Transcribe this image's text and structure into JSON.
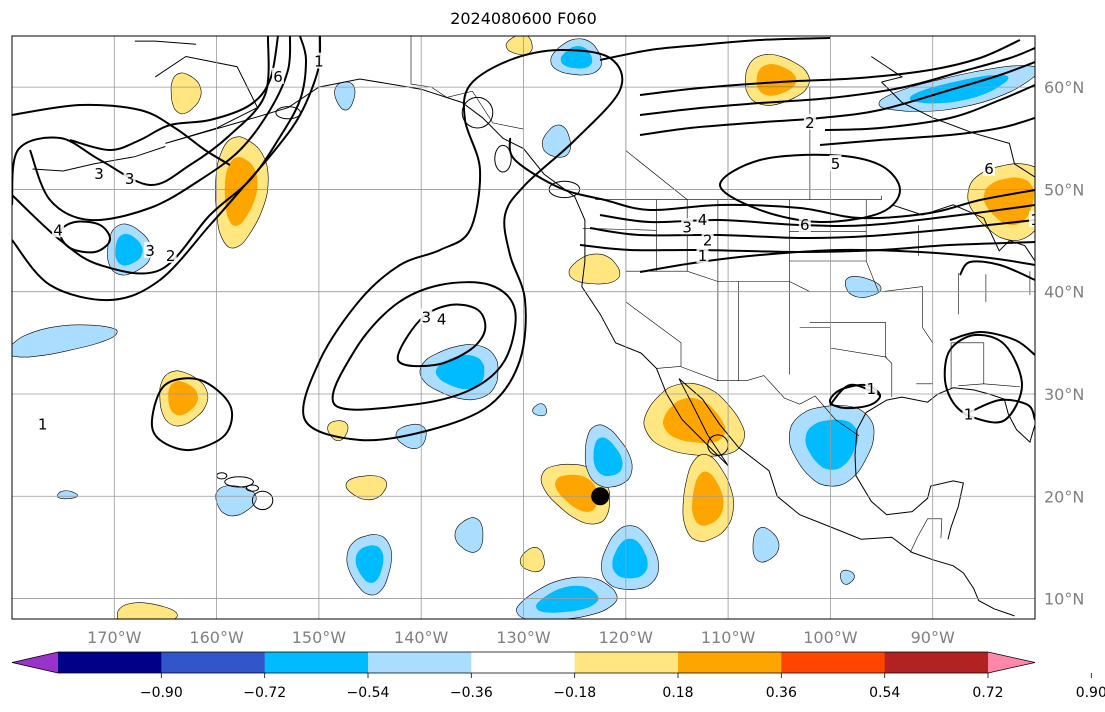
{
  "title": "2024080600 F060",
  "map": {
    "lon_range": [
      -180,
      -80
    ],
    "lat_range": [
      8,
      65
    ],
    "lon_ticks": [
      {
        "value": -170,
        "label": "170°W"
      },
      {
        "value": -160,
        "label": "160°W"
      },
      {
        "value": -150,
        "label": "150°W"
      },
      {
        "value": -140,
        "label": "140°W"
      },
      {
        "value": -130,
        "label": "130°W"
      },
      {
        "value": -120,
        "label": "120°W"
      },
      {
        "value": -110,
        "label": "110°W"
      },
      {
        "value": -100,
        "label": "100°W"
      },
      {
        "value": -90,
        "label": "90°W"
      }
    ],
    "lat_ticks": [
      {
        "value": 60,
        "label": "60°N"
      },
      {
        "value": 50,
        "label": "50°N"
      },
      {
        "value": 40,
        "label": "40°N"
      },
      {
        "value": 30,
        "label": "30°N"
      },
      {
        "value": 20,
        "label": "20°N"
      },
      {
        "value": 10,
        "label": "10°N"
      }
    ],
    "marker": {
      "lon": -122.5,
      "lat": 20.0,
      "color": "#000000"
    }
  },
  "colorbar": {
    "colors": [
      "#9933cc",
      "#000088",
      "#3355cc",
      "#00bbff",
      "#aaddff",
      "#ffffff",
      "#ffe680",
      "#ffa500",
      "#ff4500",
      "#b22222",
      "#ff88aa"
    ],
    "tick_labels": [
      "−0.90",
      "−0.72",
      "−0.54",
      "−0.36",
      "−0.18",
      "0.18",
      "0.36",
      "0.54",
      "0.72",
      "0.90"
    ],
    "neg_light": "#aaddff",
    "neg_mid": "#00bbff",
    "pos_light": "#ffe680",
    "pos_mid": "#ffa500"
  },
  "contour_labels": [
    {
      "text": "3",
      "lon": -171.5,
      "lat": 51.5
    },
    {
      "text": "3",
      "lon": -168.5,
      "lat": 51.0
    },
    {
      "text": "4",
      "lon": -175.5,
      "lat": 46.0
    },
    {
      "text": "3",
      "lon": -166.5,
      "lat": 44.0
    },
    {
      "text": "2",
      "lon": -164.5,
      "lat": 43.5
    },
    {
      "text": "6",
      "lon": -154.0,
      "lat": 61.0
    },
    {
      "text": "1",
      "lon": -150.0,
      "lat": 62.5
    },
    {
      "text": "3",
      "lon": -139.5,
      "lat": 37.5
    },
    {
      "text": "4",
      "lon": -138.0,
      "lat": 37.3
    },
    {
      "text": "1",
      "lon": -177.0,
      "lat": 27.0
    },
    {
      "text": "4",
      "lon": -112.5,
      "lat": 47.0
    },
    {
      "text": "3",
      "lon": -114.0,
      "lat": 46.3
    },
    {
      "text": "2",
      "lon": -112.0,
      "lat": 45.0
    },
    {
      "text": "1",
      "lon": -112.5,
      "lat": 43.5
    },
    {
      "text": "6",
      "lon": -102.5,
      "lat": 46.5
    },
    {
      "text": "5",
      "lon": -99.5,
      "lat": 52.5
    },
    {
      "text": "2",
      "lon": -102.0,
      "lat": 56.5
    },
    {
      "text": "6",
      "lon": -84.5,
      "lat": 52.0
    },
    {
      "text": "1",
      "lon": -80.0,
      "lat": 47.0
    },
    {
      "text": "1",
      "lon": -96.0,
      "lat": 30.5
    },
    {
      "text": "1",
      "lon": -86.5,
      "lat": 28.0
    }
  ]
}
